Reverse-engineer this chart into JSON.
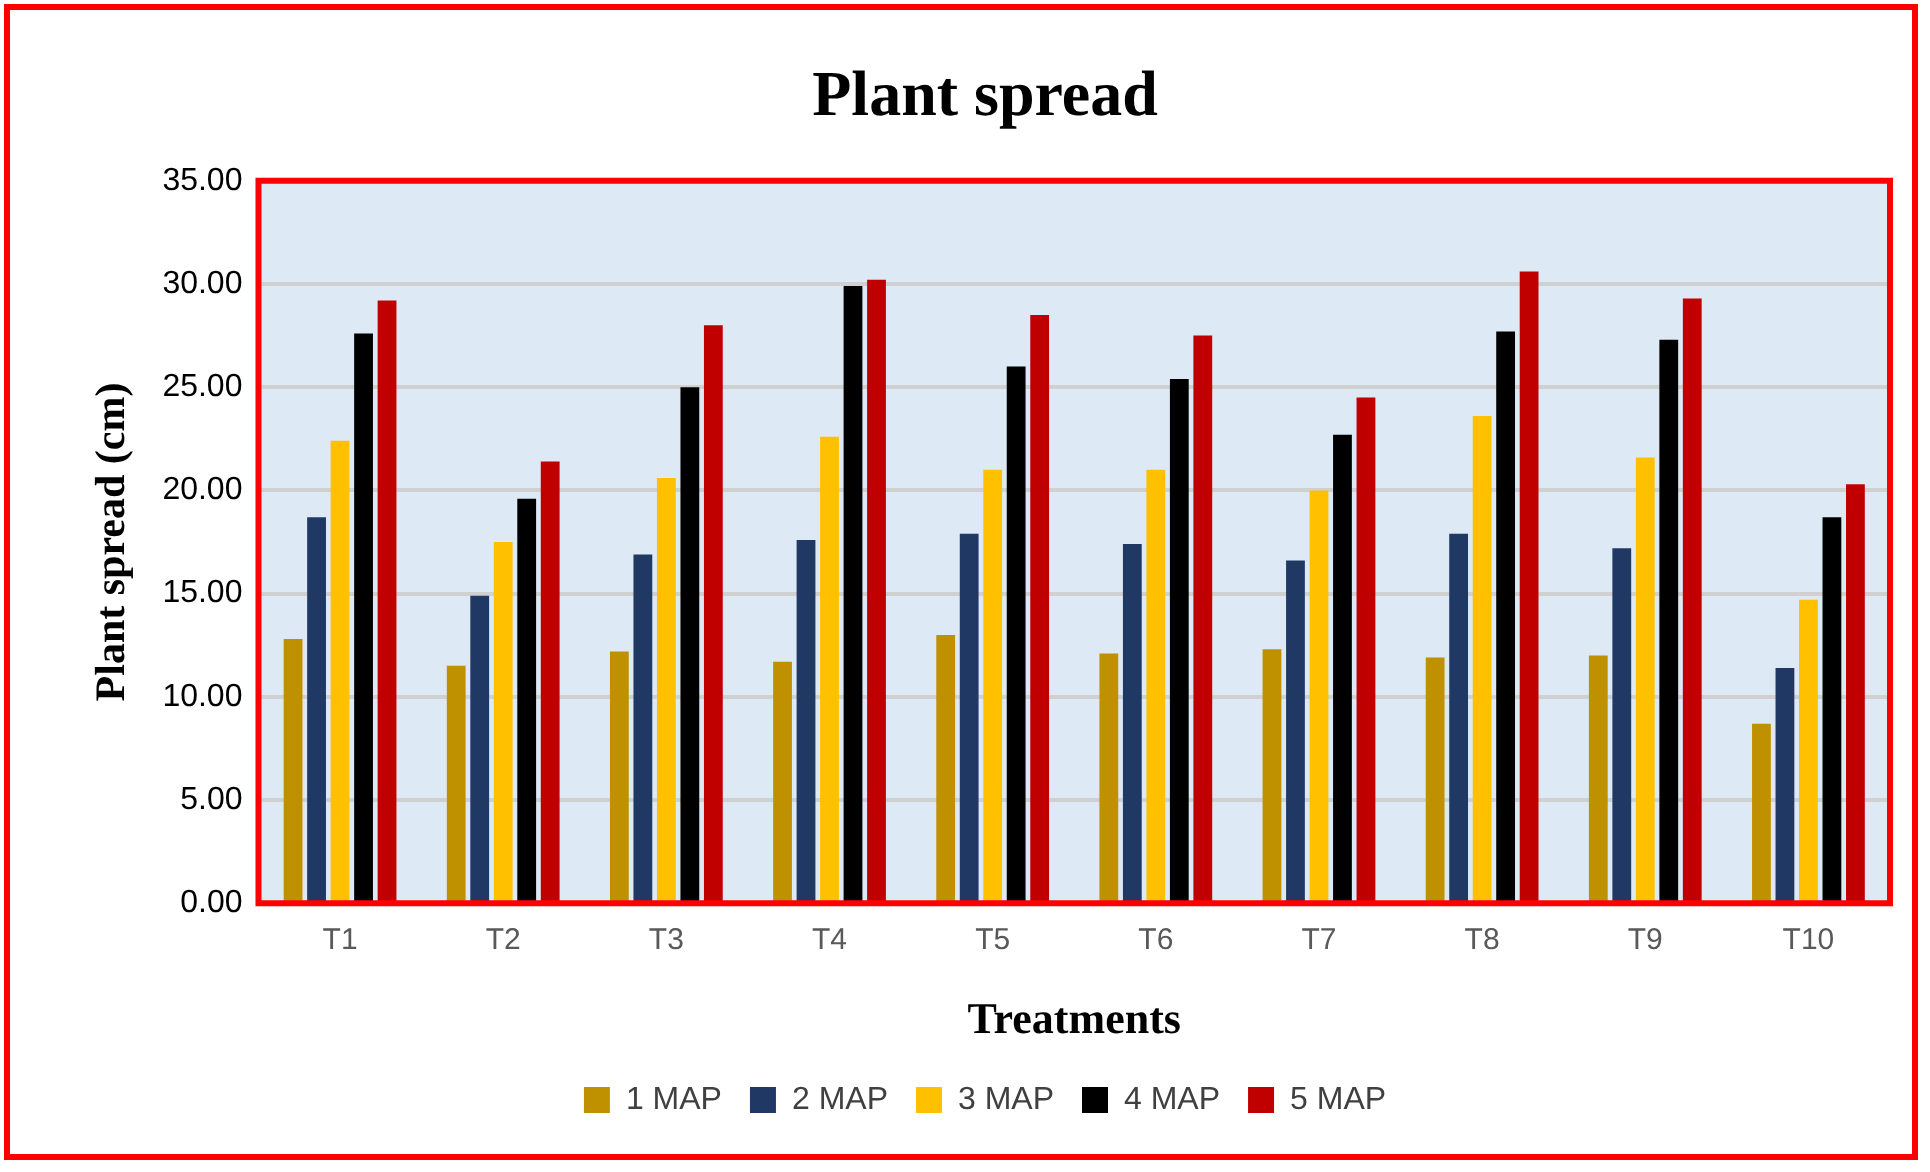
{
  "chart_data": {
    "type": "bar",
    "title": "Plant spread",
    "xlabel": "Treatments",
    "ylabel": "Plant spread (cm)",
    "categories": [
      "T1",
      "T2",
      "T3",
      "T4",
      "T5",
      "T6",
      "T7",
      "T8",
      "T9",
      "T10"
    ],
    "series": [
      {
        "name": "1 MAP",
        "color": "#bf9000",
        "values": [
          12.8,
          11.5,
          12.2,
          11.7,
          13.0,
          12.1,
          12.3,
          11.9,
          12.0,
          8.7
        ]
      },
      {
        "name": "2 MAP",
        "color": "#1f3864",
        "values": [
          18.7,
          14.9,
          16.9,
          17.6,
          17.9,
          17.4,
          16.6,
          17.9,
          17.2,
          11.4
        ]
      },
      {
        "name": "3 MAP",
        "color": "#ffc000",
        "values": [
          22.4,
          17.5,
          20.6,
          22.6,
          21.0,
          21.0,
          20.0,
          23.6,
          21.6,
          14.7
        ]
      },
      {
        "name": "4 MAP",
        "color": "#000000",
        "values": [
          27.6,
          19.6,
          25.0,
          29.9,
          26.0,
          25.4,
          22.7,
          27.7,
          27.3,
          18.7
        ]
      },
      {
        "name": "5 MAP",
        "color": "#c00000",
        "values": [
          29.2,
          21.4,
          28.0,
          30.2,
          28.5,
          27.5,
          24.5,
          30.6,
          29.3,
          20.3
        ]
      }
    ],
    "ylim": [
      0,
      35
    ],
    "yticks": [
      {
        "value": 0,
        "label": "0.00"
      },
      {
        "value": 5,
        "label": "5.00"
      },
      {
        "value": 10,
        "label": "10.00"
      },
      {
        "value": 15,
        "label": "15.00"
      },
      {
        "value": 20,
        "label": "20.00"
      },
      {
        "value": 25,
        "label": "25.00"
      },
      {
        "value": 30,
        "label": "30.00"
      },
      {
        "value": 35,
        "label": "35.00"
      }
    ],
    "grid": "y",
    "legend": "bottom"
  }
}
